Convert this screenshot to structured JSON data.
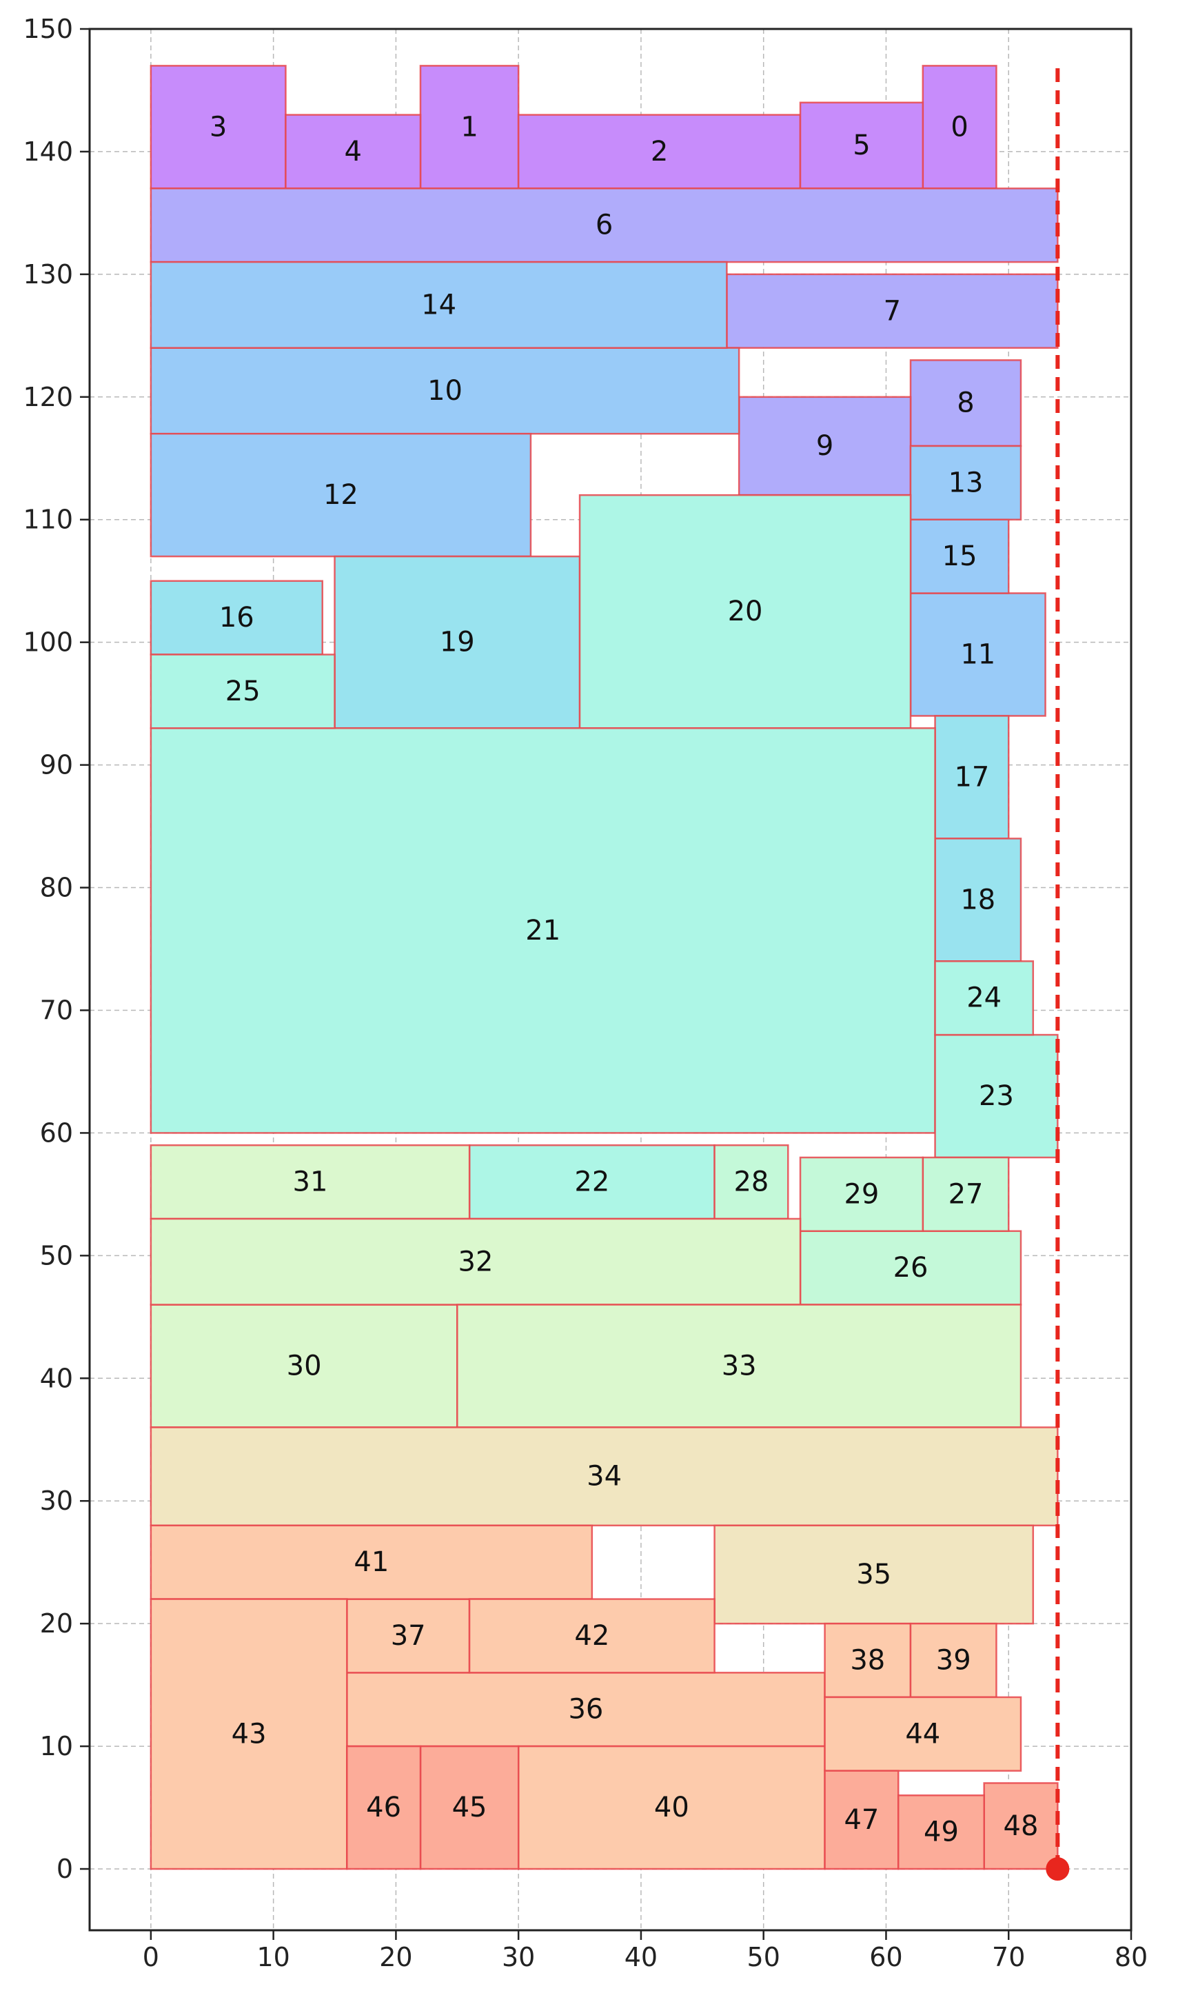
{
  "chart_data": {
    "type": "rectangle-packing",
    "title": "",
    "xlabel": "",
    "ylabel": "",
    "xlim": [
      -5,
      80
    ],
    "ylim": [
      -5,
      150
    ],
    "x_ticks": [
      0,
      10,
      20,
      30,
      40,
      50,
      60,
      70,
      80
    ],
    "y_ticks": [
      0,
      10,
      20,
      30,
      40,
      50,
      60,
      70,
      80,
      90,
      100,
      110,
      120,
      130,
      140,
      150
    ],
    "grid": true,
    "boundary_line": {
      "x": 74,
      "y0": 0,
      "y1": 147,
      "color": "#e8261e",
      "style": "dashed"
    },
    "marker": {
      "x": 74,
      "y": 0,
      "color": "#e8261e"
    },
    "rect_edge_color": "#e8454b",
    "rectangles": [
      {
        "id": "0",
        "x": 63,
        "y": 137,
        "w": 6,
        "h": 10,
        "color": "#c78cfb"
      },
      {
        "id": "1",
        "x": 22,
        "y": 137,
        "w": 8,
        "h": 10,
        "color": "#c78cfb"
      },
      {
        "id": "2",
        "x": 30,
        "y": 137,
        "w": 23,
        "h": 6,
        "color": "#c78cfb"
      },
      {
        "id": "3",
        "x": 0,
        "y": 137,
        "w": 11,
        "h": 10,
        "color": "#c78cfb"
      },
      {
        "id": "4",
        "x": 11,
        "y": 137,
        "w": 11,
        "h": 6,
        "color": "#c78cfb"
      },
      {
        "id": "5",
        "x": 53,
        "y": 137,
        "w": 10,
        "h": 7,
        "color": "#c78cfb"
      },
      {
        "id": "6",
        "x": 0,
        "y": 131,
        "w": 74,
        "h": 6,
        "color": "#b0acfb"
      },
      {
        "id": "7",
        "x": 47,
        "y": 124,
        "w": 27,
        "h": 6,
        "color": "#b0acfb"
      },
      {
        "id": "8",
        "x": 62,
        "y": 116,
        "w": 9,
        "h": 7,
        "color": "#b0acfb"
      },
      {
        "id": "9",
        "x": 48,
        "y": 112,
        "w": 14,
        "h": 8,
        "color": "#b0acfb"
      },
      {
        "id": "10",
        "x": 0,
        "y": 117,
        "w": 48,
        "h": 7,
        "color": "#99cbf8"
      },
      {
        "id": "11",
        "x": 62,
        "y": 94,
        "w": 11,
        "h": 10,
        "color": "#99cbf8"
      },
      {
        "id": "12",
        "x": 0,
        "y": 107,
        "w": 31,
        "h": 10,
        "color": "#99cbf8"
      },
      {
        "id": "13",
        "x": 62,
        "y": 110,
        "w": 9,
        "h": 6,
        "color": "#99cbf8"
      },
      {
        "id": "14",
        "x": 0,
        "y": 124,
        "w": 47,
        "h": 7,
        "color": "#99cbf8"
      },
      {
        "id": "15",
        "x": 62,
        "y": 104,
        "w": 8,
        "h": 6,
        "color": "#99cbf8"
      },
      {
        "id": "16",
        "x": 0,
        "y": 99,
        "w": 14,
        "h": 6,
        "color": "#99e3ef"
      },
      {
        "id": "17",
        "x": 64,
        "y": 84,
        "w": 6,
        "h": 10,
        "color": "#99e3ef"
      },
      {
        "id": "18",
        "x": 64,
        "y": 74,
        "w": 7,
        "h": 10,
        "color": "#99e3ef"
      },
      {
        "id": "19",
        "x": 15,
        "y": 93,
        "w": 20,
        "h": 14,
        "color": "#99e3ef"
      },
      {
        "id": "20",
        "x": 35,
        "y": 93,
        "w": 27,
        "h": 19,
        "color": "#adf6e6"
      },
      {
        "id": "21",
        "x": 0,
        "y": 60,
        "w": 64,
        "h": 33,
        "color": "#adf6e6"
      },
      {
        "id": "22",
        "x": 26,
        "y": 53,
        "w": 20,
        "h": 6,
        "color": "#adf6e6"
      },
      {
        "id": "23",
        "x": 64,
        "y": 58,
        "w": 10,
        "h": 10,
        "color": "#adf6e6"
      },
      {
        "id": "24",
        "x": 64,
        "y": 68,
        "w": 8,
        "h": 6,
        "color": "#adf6e6"
      },
      {
        "id": "25",
        "x": 0,
        "y": 93,
        "w": 15,
        "h": 6,
        "color": "#adf6e6"
      },
      {
        "id": "26",
        "x": 53,
        "y": 46,
        "w": 18,
        "h": 6,
        "color": "#c4f9d9"
      },
      {
        "id": "27",
        "x": 63,
        "y": 52,
        "w": 7,
        "h": 6,
        "color": "#c4f9d9"
      },
      {
        "id": "28",
        "x": 46,
        "y": 53,
        "w": 6,
        "h": 6,
        "color": "#c4f9d9"
      },
      {
        "id": "29",
        "x": 53,
        "y": 52,
        "w": 10,
        "h": 6,
        "color": "#c4f9d9"
      },
      {
        "id": "30",
        "x": 0,
        "y": 36,
        "w": 25,
        "h": 10,
        "color": "#dbf8ce"
      },
      {
        "id": "31",
        "x": 0,
        "y": 53,
        "w": 26,
        "h": 6,
        "color": "#dbf8ce"
      },
      {
        "id": "32",
        "x": 0,
        "y": 46,
        "w": 53,
        "h": 7,
        "color": "#dbf8ce"
      },
      {
        "id": "33",
        "x": 25,
        "y": 36,
        "w": 46,
        "h": 10,
        "color": "#dbf8ce"
      },
      {
        "id": "34",
        "x": 0,
        "y": 28,
        "w": 74,
        "h": 8,
        "color": "#f1e6c1"
      },
      {
        "id": "35",
        "x": 46,
        "y": 20,
        "w": 26,
        "h": 8,
        "color": "#f1e6c1"
      },
      {
        "id": "36",
        "x": 16,
        "y": 10,
        "w": 39,
        "h": 6,
        "color": "#fdcbac"
      },
      {
        "id": "37",
        "x": 16,
        "y": 16,
        "w": 10,
        "h": 6,
        "color": "#fdcbac"
      },
      {
        "id": "38",
        "x": 55,
        "y": 14,
        "w": 7,
        "h": 6,
        "color": "#fdcbac"
      },
      {
        "id": "39",
        "x": 62,
        "y": 14,
        "w": 7,
        "h": 6,
        "color": "#fdcbac"
      },
      {
        "id": "40",
        "x": 30,
        "y": 0,
        "w": 25,
        "h": 10,
        "color": "#fdcbac"
      },
      {
        "id": "41",
        "x": 0,
        "y": 22,
        "w": 36,
        "h": 6,
        "color": "#fdcbac"
      },
      {
        "id": "42",
        "x": 26,
        "y": 16,
        "w": 20,
        "h": 6,
        "color": "#fdcbac"
      },
      {
        "id": "43",
        "x": 0,
        "y": 0,
        "w": 16,
        "h": 22,
        "color": "#fdcbac"
      },
      {
        "id": "44",
        "x": 55,
        "y": 8,
        "w": 16,
        "h": 6,
        "color": "#fdcbac"
      },
      {
        "id": "45",
        "x": 22,
        "y": 0,
        "w": 8,
        "h": 10,
        "color": "#fcac99"
      },
      {
        "id": "46",
        "x": 16,
        "y": 0,
        "w": 6,
        "h": 10,
        "color": "#fcac99"
      },
      {
        "id": "47",
        "x": 55,
        "y": 0,
        "w": 6,
        "h": 8,
        "color": "#fcac99"
      },
      {
        "id": "48",
        "x": 68,
        "y": 0,
        "w": 6,
        "h": 7,
        "color": "#fcac99"
      },
      {
        "id": "49",
        "x": 61,
        "y": 0,
        "w": 7,
        "h": 6,
        "color": "#fcac99"
      }
    ]
  }
}
